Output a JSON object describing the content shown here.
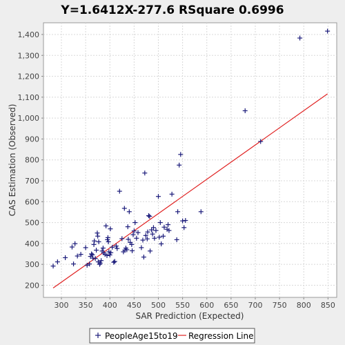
{
  "chart_data": {
    "type": "scatter",
    "title": "Y=1.6412X-277.6    RSquare 0.6996",
    "xlabel": "SAR Prediction (Expected)",
    "ylabel": "CAS Estimation (Observed)",
    "xlim": [
      263,
      868
    ],
    "ylim": [
      142,
      1456
    ],
    "xticks": [
      300,
      350,
      400,
      450,
      500,
      550,
      600,
      650,
      700,
      750,
      800,
      850
    ],
    "yticks": [
      200,
      300,
      400,
      500,
      600,
      700,
      800,
      900,
      1000,
      1100,
      1200,
      1300,
      1400
    ],
    "ytick_labels": [
      "200",
      "300",
      "400",
      "500",
      "600",
      "700",
      "800",
      "900",
      "1,000",
      "1,100",
      "1,200",
      "1,300",
      "1,400"
    ],
    "grid": true,
    "legend_position": "bottom",
    "series": [
      {
        "name": "PeopleAge15to19",
        "color": "#1a1a7a",
        "marker": "plus",
        "points": [
          [
            283,
            292
          ],
          [
            292,
            312
          ],
          [
            308,
            332
          ],
          [
            322,
            383
          ],
          [
            325,
            302
          ],
          [
            328,
            399
          ],
          [
            333,
            340
          ],
          [
            340,
            348
          ],
          [
            350,
            380
          ],
          [
            353,
            296
          ],
          [
            358,
            302
          ],
          [
            360,
            338
          ],
          [
            362,
            350
          ],
          [
            364,
            346
          ],
          [
            365,
            330
          ],
          [
            367,
            395
          ],
          [
            368,
            412
          ],
          [
            370,
            328
          ],
          [
            372,
            368
          ],
          [
            374,
            450
          ],
          [
            375,
            435
          ],
          [
            376,
            312
          ],
          [
            377,
            408
          ],
          [
            379,
            300
          ],
          [
            380,
            306
          ],
          [
            382,
            318
          ],
          [
            384,
            364
          ],
          [
            386,
            378
          ],
          [
            387,
            355
          ],
          [
            390,
            348
          ],
          [
            392,
            484
          ],
          [
            394,
            342
          ],
          [
            395,
            418
          ],
          [
            396,
            428
          ],
          [
            397,
            408
          ],
          [
            398,
            360
          ],
          [
            400,
            345
          ],
          [
            401,
            470
          ],
          [
            402,
            356
          ],
          [
            405,
            382
          ],
          [
            408,
            310
          ],
          [
            410,
            314
          ],
          [
            413,
            388
          ],
          [
            415,
            376
          ],
          [
            420,
            650
          ],
          [
            425,
            423
          ],
          [
            428,
            360
          ],
          [
            430,
            568
          ],
          [
            431,
            368
          ],
          [
            433,
            378
          ],
          [
            435,
            370
          ],
          [
            437,
            480
          ],
          [
            438,
            420
          ],
          [
            440,
            552
          ],
          [
            442,
            405
          ],
          [
            445,
            395
          ],
          [
            446,
            365
          ],
          [
            448,
            442
          ],
          [
            450,
            460
          ],
          [
            452,
            500
          ],
          [
            455,
            425
          ],
          [
            458,
            452
          ],
          [
            465,
            380
          ],
          [
            468,
            416
          ],
          [
            470,
            335
          ],
          [
            472,
            737
          ],
          [
            474,
            438
          ],
          [
            477,
            422
          ],
          [
            478,
            455
          ],
          [
            480,
            533
          ],
          [
            482,
            530
          ],
          [
            483,
            364
          ],
          [
            486,
            465
          ],
          [
            488,
            445
          ],
          [
            490,
            476
          ],
          [
            492,
            425
          ],
          [
            495,
            462
          ],
          [
            500,
            625
          ],
          [
            502,
            430
          ],
          [
            504,
            500
          ],
          [
            506,
            398
          ],
          [
            510,
            435
          ],
          [
            512,
            478
          ],
          [
            518,
            468
          ],
          [
            520,
            490
          ],
          [
            522,
            462
          ],
          [
            528,
            636
          ],
          [
            538,
            418
          ],
          [
            540,
            552
          ],
          [
            543,
            775
          ],
          [
            546,
            826
          ],
          [
            550,
            508
          ],
          [
            553,
            476
          ],
          [
            556,
            510
          ],
          [
            588,
            552
          ],
          [
            679,
            1035
          ],
          [
            711,
            888
          ],
          [
            792,
            1383
          ],
          [
            849,
            1416
          ]
        ]
      }
    ],
    "regression": {
      "name": "Regression Line",
      "color": "#e02020",
      "slope": 1.6412,
      "intercept": -277.6,
      "x_range": [
        283,
        849
      ]
    }
  }
}
